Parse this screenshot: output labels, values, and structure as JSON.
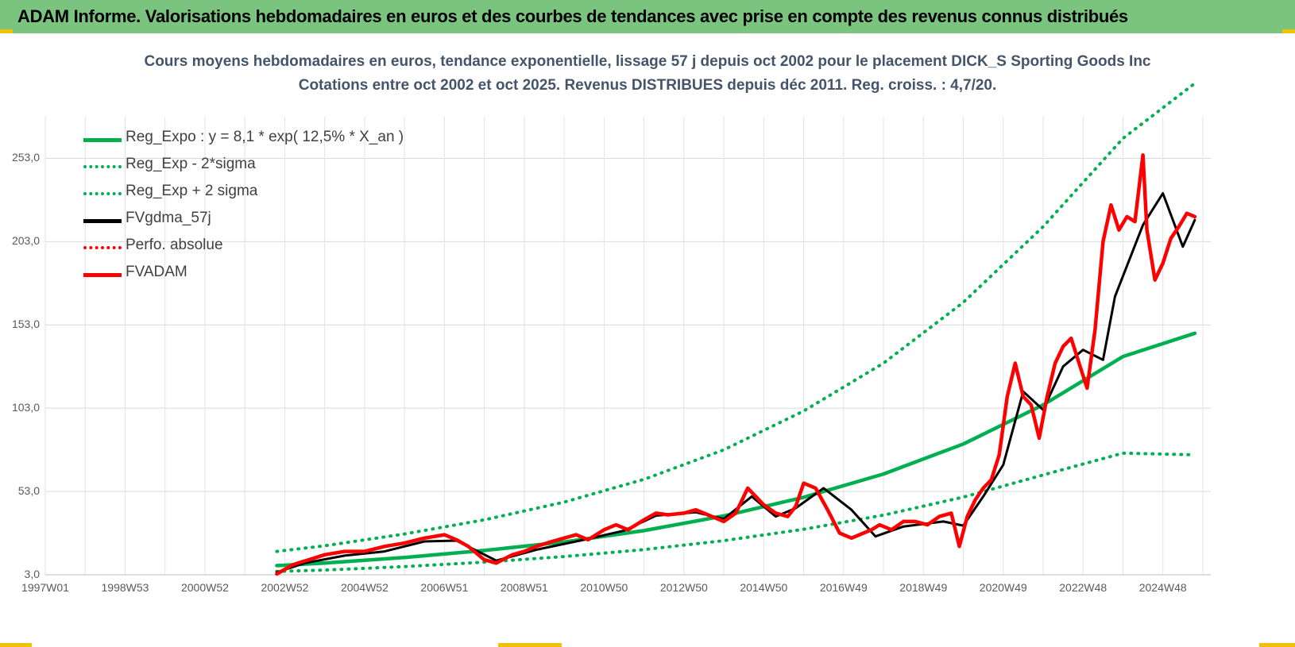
{
  "header": {
    "title": "ADAM Informe. Valorisations hebdomadaires en euros et des courbes de tendances avec prise en compte des revenus connus distribués"
  },
  "chart_data": {
    "type": "line",
    "title": "Cours moyens hebdomadaires en euros, tendance exponentielle, lissage 57 j depuis oct 2002 pour le placement DICK_S Sporting Goods Inc",
    "subtitle": "Cotations entre oct 2002 et oct 2025.  Revenus DISTRIBUES depuis déc 2011. Reg. croiss. : 4,7/20.",
    "xlabel": "",
    "ylabel": "",
    "x_ticks": [
      "1997W01",
      "1998W53",
      "2000W52",
      "2002W52",
      "2004W52",
      "2006W51",
      "2008W51",
      "2010W50",
      "2012W50",
      "2014W50",
      "2016W49",
      "2018W49",
      "2020W49",
      "2022W48",
      "2024W48"
    ],
    "y_ticks": [
      "3,0",
      "53,0",
      "103,0",
      "153,0",
      "203,0",
      "253,0"
    ],
    "ylim": [
      3,
      278
    ],
    "xlim": [
      1997.0,
      2026.2
    ],
    "grid": true,
    "legend_position": "top-left",
    "series": [
      {
        "name": "Reg_Expo : y = 8,1 * exp( 12,5% *  X_an )",
        "color": "#00b050",
        "style": "solid",
        "x": [
          2002.8,
          2004,
          2006,
          2008,
          2010,
          2012,
          2014,
          2016,
          2018,
          2020,
          2022,
          2024,
          2025.8
        ],
        "values": [
          8.5,
          10.0,
          13.4,
          17.6,
          22.7,
          29.5,
          38.3,
          49.5,
          63.5,
          81.5,
          105.0,
          134.0,
          148.0
        ]
      },
      {
        "name": "Reg_Exp - 2*sigma",
        "color": "#00b050",
        "style": "dotted",
        "x": [
          2002.8,
          2004,
          2006,
          2008,
          2010,
          2012,
          2014,
          2016,
          2018,
          2020,
          2022,
          2024,
          2025.8
        ],
        "values": [
          5.0,
          5.8,
          7.9,
          10.6,
          13.9,
          18.1,
          23.5,
          30.3,
          38.8,
          49.6,
          62.9,
          76.0,
          75.0
        ]
      },
      {
        "name": "Reg_Exp + 2 sigma",
        "color": "#00b050",
        "style": "dotted",
        "x": [
          2002.8,
          2004,
          2006,
          2008,
          2010,
          2012,
          2014,
          2016,
          2018,
          2020,
          2022,
          2024,
          2025.8
        ],
        "values": [
          17.0,
          20.4,
          27.5,
          36.0,
          46.6,
          60.3,
          78.0,
          101.3,
          130.0,
          166.5,
          212.0,
          265.0,
          298.0
        ]
      },
      {
        "name": "FVgdma_57j",
        "color": "#000000",
        "style": "solid",
        "x": [
          2002.8,
          2003.5,
          2004.5,
          2005.5,
          2006.5,
          2007.3,
          2008.3,
          2009.3,
          2010.5,
          2011.5,
          2012.3,
          2013.3,
          2014.0,
          2014.7,
          2015.3,
          2015.8,
          2016.5,
          2017.2,
          2017.8,
          2018.5,
          2019.5,
          2020.0,
          2020.5,
          2021.0,
          2021.5,
          2022.0,
          2022.5,
          2023.0,
          2023.5,
          2023.8,
          2024.5,
          2025.0,
          2025.5,
          2025.8
        ],
        "values": [
          4.5,
          10.0,
          14.5,
          17.0,
          23.0,
          23.5,
          11.5,
          18.0,
          24.0,
          29.5,
          38.5,
          40.5,
          36.5,
          50.0,
          38.0,
          43.0,
          55.0,
          42.0,
          26.0,
          32.0,
          35.0,
          32.5,
          50.0,
          69.0,
          113.0,
          102.0,
          128.0,
          138.0,
          132.0,
          170.0,
          213.0,
          232.0,
          200.0,
          216.0
        ]
      },
      {
        "name": "Perfo. absolue",
        "color": "#ff0000",
        "style": "dotted",
        "x": [],
        "values": []
      },
      {
        "name": "FVADAM",
        "color": "#ff0000",
        "style": "solid",
        "x": [
          2002.8,
          2003.2,
          2003.6,
          2004.0,
          2004.5,
          2005.0,
          2005.5,
          2006.0,
          2006.5,
          2007.0,
          2007.3,
          2007.6,
          2008.0,
          2008.3,
          2008.7,
          2009.0,
          2009.3,
          2009.7,
          2010.0,
          2010.3,
          2010.6,
          2011.0,
          2011.3,
          2011.6,
          2012.0,
          2012.3,
          2012.6,
          2013.0,
          2013.3,
          2013.6,
          2014.0,
          2014.3,
          2014.6,
          2014.8,
          2015.0,
          2015.3,
          2015.6,
          2015.8,
          2016.0,
          2016.3,
          2016.6,
          2016.9,
          2017.2,
          2017.5,
          2017.7,
          2017.9,
          2018.2,
          2018.5,
          2018.8,
          2019.1,
          2019.4,
          2019.7,
          2019.9,
          2020.1,
          2020.3,
          2020.5,
          2020.7,
          2020.9,
          2021.1,
          2021.3,
          2021.5,
          2021.7,
          2021.9,
          2022.1,
          2022.3,
          2022.5,
          2022.7,
          2022.9,
          2023.1,
          2023.3,
          2023.5,
          2023.7,
          2023.9,
          2024.1,
          2024.3,
          2024.5,
          2024.6,
          2024.8,
          2025.0,
          2025.2,
          2025.4,
          2025.6,
          2025.8
        ],
        "values": [
          3.5,
          9.0,
          12.0,
          15.0,
          17.0,
          17.0,
          20.0,
          22.0,
          25.0,
          27.0,
          24.0,
          20.0,
          12.0,
          10.0,
          15.0,
          17.0,
          20.0,
          23.0,
          25.0,
          27.0,
          24.0,
          30.0,
          33.0,
          30.0,
          36.0,
          40.0,
          39.0,
          40.0,
          42.0,
          39.0,
          35.0,
          40.0,
          55.0,
          50.0,
          45.0,
          40.0,
          38.0,
          44.0,
          58.0,
          55.0,
          42.0,
          28.0,
          25.0,
          28.0,
          30.0,
          33.0,
          30.0,
          35.0,
          35.0,
          33.0,
          38.0,
          40.0,
          20.0,
          38.0,
          48.0,
          55.0,
          60.0,
          75.0,
          110.0,
          130.0,
          110.0,
          105.0,
          85.0,
          110.0,
          130.0,
          140.0,
          145.0,
          130.0,
          115.0,
          150.0,
          203.0,
          225.0,
          210.0,
          218.0,
          215.0,
          255.0,
          210.0,
          180.0,
          190.0,
          205.0,
          212.0,
          220.0,
          218.0
        ]
      }
    ]
  }
}
